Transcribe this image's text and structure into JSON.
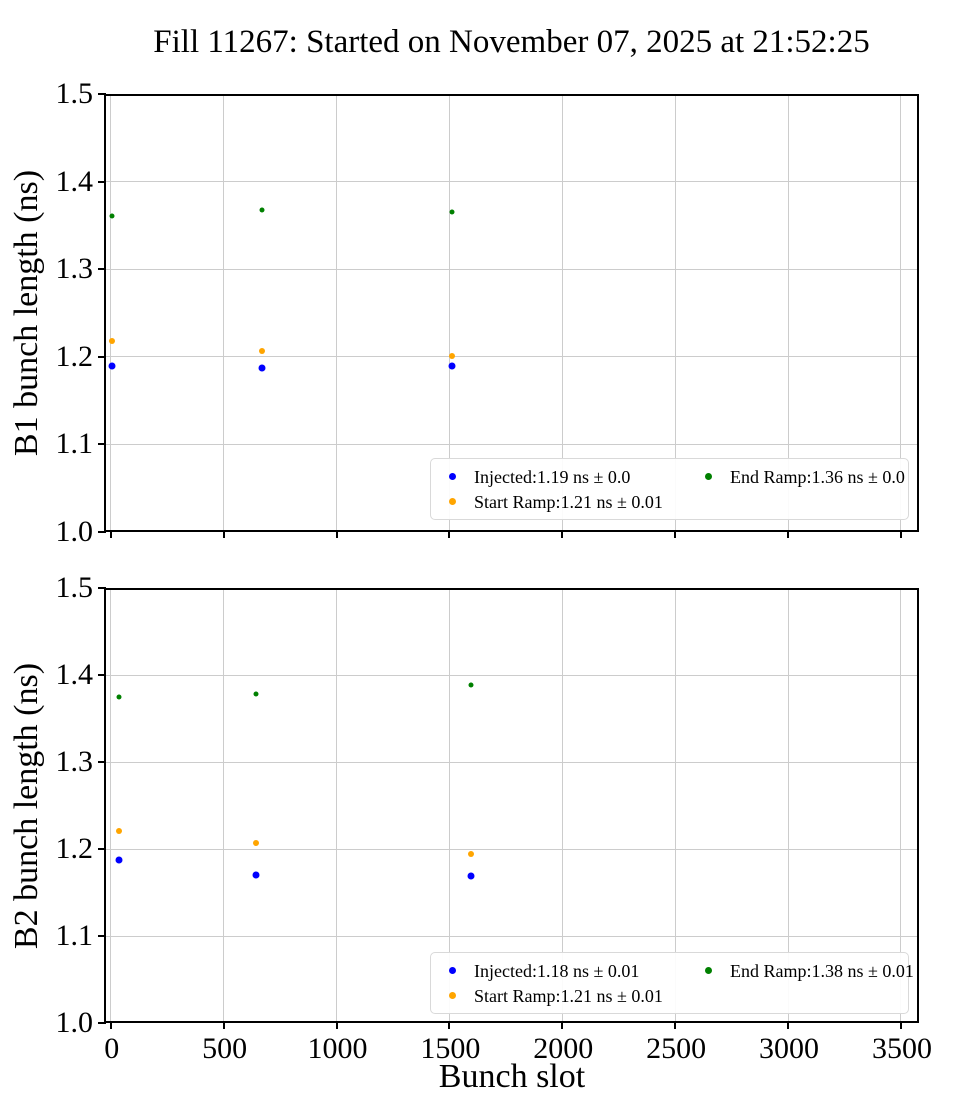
{
  "title": "Fill 11267: Started on November 07, 2025 at 21:52:25",
  "xlabel": "Bunch slot",
  "colors": {
    "injected": "#0000ff",
    "start_ramp": "#ffa500",
    "end_ramp": "#008000",
    "grid": "#cccccc",
    "spine": "#000000",
    "legend_border": "#d9d9d9"
  },
  "chart_data": [
    {
      "type": "scatter",
      "ylabel": "B1 bunch length (ns)",
      "xlim": [
        -30,
        3580
      ],
      "ylim": [
        1.0,
        1.5
      ],
      "grid": true,
      "legend_position": "lower right",
      "xticks": [
        0,
        500,
        1000,
        1500,
        2000,
        2500,
        3000,
        3500
      ],
      "xtick_labels": [
        "0",
        "500",
        "1000",
        "1500",
        "2000",
        "2500",
        "3000",
        "3500"
      ],
      "show_xtick_labels": false,
      "yticks": [
        1.0,
        1.1,
        1.2,
        1.3,
        1.4,
        1.5
      ],
      "ytick_labels": [
        "1.0",
        "1.1",
        "1.2",
        "1.3",
        "1.4",
        "1.5"
      ],
      "series": [
        {
          "name": "injected",
          "label": "Injected:1.19 ns ± 0.0",
          "color": "#0000ff",
          "marker_px": 7,
          "points": [
            {
              "x": 5,
              "y": 1.189
            },
            {
              "x": 670,
              "y": 1.187
            },
            {
              "x": 1510,
              "y": 1.19
            }
          ]
        },
        {
          "name": "start-ramp",
          "label": "Start Ramp:1.21 ns ± 0.01",
          "color": "#ffa500",
          "marker_px": 6,
          "points": [
            {
              "x": 5,
              "y": 1.218
            },
            {
              "x": 670,
              "y": 1.207
            },
            {
              "x": 1510,
              "y": 1.201
            }
          ]
        },
        {
          "name": "end-ramp",
          "label": "End Ramp:1.36 ns ± 0.0",
          "color": "#008000",
          "marker_px": 5,
          "points": [
            {
              "x": 5,
              "y": 1.361
            },
            {
              "x": 670,
              "y": 1.368
            },
            {
              "x": 1510,
              "y": 1.365
            }
          ]
        }
      ]
    },
    {
      "type": "scatter",
      "ylabel": "B2 bunch length (ns)",
      "xlim": [
        -30,
        3580
      ],
      "ylim": [
        1.0,
        1.5
      ],
      "grid": true,
      "legend_position": "lower right",
      "xticks": [
        0,
        500,
        1000,
        1500,
        2000,
        2500,
        3000,
        3500
      ],
      "xtick_labels": [
        "0",
        "500",
        "1000",
        "1500",
        "2000",
        "2500",
        "3000",
        "3500"
      ],
      "show_xtick_labels": true,
      "yticks": [
        1.0,
        1.1,
        1.2,
        1.3,
        1.4,
        1.5
      ],
      "ytick_labels": [
        "1.0",
        "1.1",
        "1.2",
        "1.3",
        "1.4",
        "1.5"
      ],
      "series": [
        {
          "name": "injected",
          "label": "Injected:1.18 ns ± 0.01",
          "color": "#0000ff",
          "marker_px": 7,
          "points": [
            {
              "x": 35,
              "y": 1.187
            },
            {
              "x": 645,
              "y": 1.17
            },
            {
              "x": 1595,
              "y": 1.169
            }
          ]
        },
        {
          "name": "start-ramp",
          "label": "Start Ramp:1.21 ns ± 0.01",
          "color": "#ffa500",
          "marker_px": 6,
          "points": [
            {
              "x": 35,
              "y": 1.221
            },
            {
              "x": 645,
              "y": 1.207
            },
            {
              "x": 1595,
              "y": 1.194
            }
          ]
        },
        {
          "name": "end-ramp",
          "label": "End Ramp:1.38 ns ± 0.01",
          "color": "#008000",
          "marker_px": 5,
          "points": [
            {
              "x": 35,
              "y": 1.375
            },
            {
              "x": 645,
              "y": 1.378
            },
            {
              "x": 1595,
              "y": 1.388
            }
          ]
        }
      ]
    }
  ]
}
